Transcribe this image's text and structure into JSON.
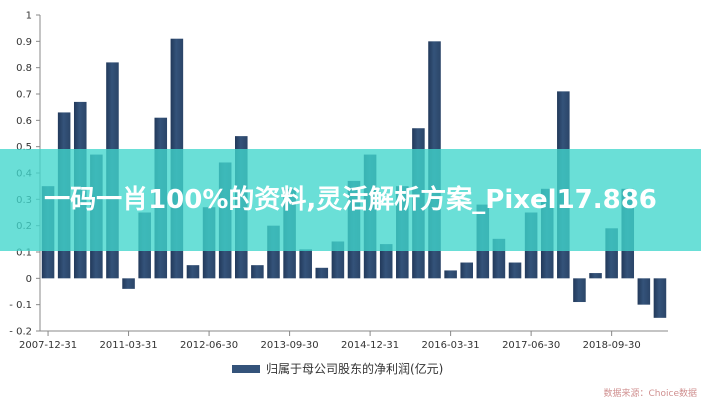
{
  "overlay": {
    "headline": "一码一肖100%的资料,灵活解析方案_Pixel17.886",
    "background_color": "#40d6cc"
  },
  "source_label": "数据来源：Choice数据",
  "chart_data": {
    "type": "bar",
    "title": "",
    "xlabel": "",
    "ylabel": "",
    "ylim": [
      -0.2,
      1.0
    ],
    "yticks": [
      -0.2,
      -0.1,
      0,
      0.1,
      0.2,
      0.3,
      0.4,
      0.5,
      0.6,
      0.7,
      0.8,
      0.9,
      1
    ],
    "ytick_labels": [
      "- 0.2",
      "- 0.1",
      "0",
      "0.1",
      "0.2",
      "0.3",
      "0.4",
      "0.5",
      "0.6",
      "0.7",
      "0.8",
      "0.9",
      "1"
    ],
    "x_tick_labels": [
      "2007-12-31",
      "2011-03-31",
      "2012-06-30",
      "2013-09-30",
      "2014-12-31",
      "2016-03-31",
      "2017-06-30",
      "2018-09-30"
    ],
    "x_tick_every": 5,
    "grid": false,
    "legend_position": "bottom",
    "bar_color": "#34537a",
    "series": [
      {
        "name": "归属于母公司股东的净利润(亿元)",
        "values": [
          0.35,
          0.63,
          0.67,
          0.47,
          0.82,
          -0.04,
          0.25,
          0.61,
          0.91,
          0.05,
          0.27,
          0.44,
          0.54,
          0.05,
          0.2,
          0.34,
          0.11,
          0.04,
          0.14,
          0.37,
          0.47,
          0.13,
          0.35,
          0.57,
          0.9,
          0.03,
          0.06,
          0.28,
          0.15,
          0.06,
          0.25,
          0.34,
          0.71,
          -0.09,
          0.02,
          0.19,
          0.34,
          -0.1,
          -0.15
        ]
      }
    ]
  }
}
